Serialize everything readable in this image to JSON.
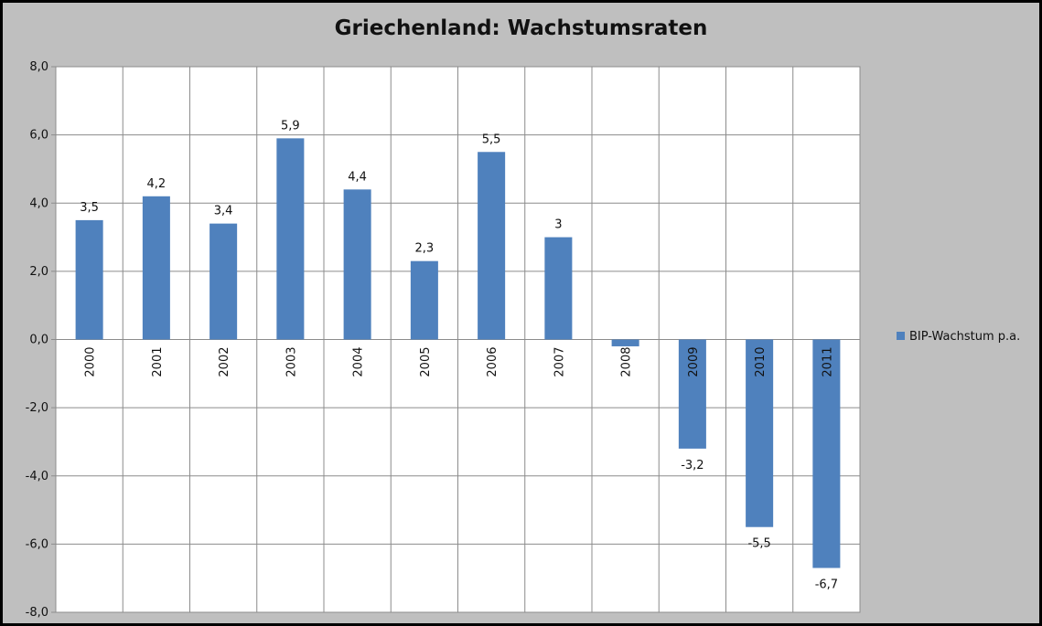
{
  "chart_data": {
    "type": "bar",
    "title": "Griechenland: Wachstumsraten",
    "xlabel": "",
    "ylabel": "",
    "categories": [
      "2000",
      "2001",
      "2002",
      "2003",
      "2004",
      "2005",
      "2006",
      "2007",
      "2008",
      "2009",
      "2010",
      "2011"
    ],
    "series": [
      {
        "name": "BIP-Wachstum p.a.",
        "values": [
          3.5,
          4.2,
          3.4,
          5.9,
          4.4,
          2.3,
          5.5,
          3.0,
          -0.2,
          -3.2,
          -5.5,
          -6.7
        ],
        "data_labels": [
          "3,5",
          "4,2",
          "3,4",
          "5,9",
          "4,4",
          "2,3",
          "5,5",
          "3",
          "",
          "-3,2",
          "-5,5",
          "-6,7"
        ]
      }
    ],
    "ylim": [
      -8,
      8
    ],
    "y_ticks": [
      8,
      6,
      4,
      2,
      0,
      -2,
      -4,
      -6,
      -8
    ],
    "y_tick_labels": [
      "8,0",
      "6,0",
      "4,0",
      "2,0",
      "0,0",
      "-2,0",
      "-4,0",
      "-6,0",
      "-8,0"
    ],
    "grid": true,
    "legend_position": "right",
    "colors": {
      "bar": "#4f81bd",
      "plot_background": "#ffffff",
      "chart_background": "#bfbfbf",
      "gridline": "#8c8c8c"
    }
  }
}
